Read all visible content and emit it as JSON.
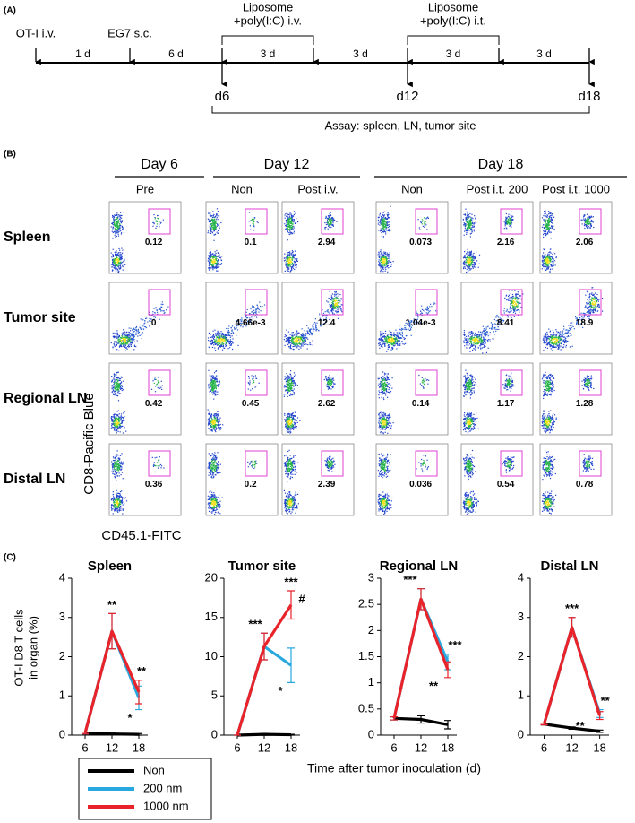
{
  "panel_a": {
    "label": "(A)",
    "events": [
      "OT-I i.v.",
      "EG7 s.c."
    ],
    "treatments": [
      [
        "Liposome",
        "+poly(I:C) i.v."
      ],
      [
        "Liposome",
        "+poly(I:C) i.t."
      ]
    ],
    "intervals": [
      "1 d",
      "6 d",
      "3 d",
      "3 d",
      "3 d",
      "3 d"
    ],
    "days": [
      "d6",
      "d12",
      "d18"
    ],
    "assay": "Assay: spleen, LN, tumor site"
  },
  "panel_b": {
    "label": "(B)",
    "groups": [
      "Day 6",
      "Day 12",
      "Day 18"
    ],
    "columns": [
      "Pre",
      "Non",
      "Post i.v.",
      "Non",
      "Post i.t. 200",
      "Post i.t. 1000"
    ],
    "rows": [
      "Spleen",
      "Tumor site",
      "Regional LN",
      "Distal LN"
    ],
    "gate_values": [
      [
        "0.12",
        "0.1",
        "2.94",
        "0.073",
        "2.16",
        "2.06"
      ],
      [
        "0",
        "4.66e-3",
        "12.4",
        "1.04e-3",
        "8.41",
        "18.9"
      ],
      [
        "0.42",
        "0.45",
        "2.62",
        "0.14",
        "1.17",
        "1.28"
      ],
      [
        "0.36",
        "0.2",
        "2.39",
        "0.036",
        "0.54",
        "0.78"
      ]
    ],
    "ylabel": "CD8-Pacific Blue",
    "xlabel": "CD45.1-FITC"
  },
  "panel_c": {
    "label": "(C)"
  },
  "chart_data": [
    {
      "type": "line",
      "title": "Spleen",
      "ylabel": [
        "OT-I D8 T cells",
        "in organ (%)"
      ],
      "xlabel": "Time after tumor inoculation (d)",
      "x": [
        6,
        12,
        18
      ],
      "xlim": [
        3,
        20
      ],
      "xticks": [
        6,
        12,
        18
      ],
      "ylim": [
        0,
        4
      ],
      "yticks": [
        0,
        1,
        2,
        3,
        4
      ],
      "series": [
        {
          "name": "Non",
          "color": "#000000",
          "values": [
            0.05,
            0.03,
            0.02
          ],
          "errors": [
            0.02,
            0.02,
            0.02
          ]
        },
        {
          "name": "200 nm",
          "color": "#29a8e0",
          "values": [
            0.05,
            2.65,
            0.95
          ],
          "errors": [
            0.02,
            0.45,
            0.3
          ]
        },
        {
          "name": "1000 nm",
          "color": "#e8232a",
          "values": [
            0.05,
            2.65,
            1.1
          ],
          "errors": [
            0.02,
            0.45,
            0.3
          ]
        }
      ],
      "annotations": [
        "**",
        "**",
        "*"
      ]
    },
    {
      "type": "line",
      "title": "Tumor site",
      "x": [
        6,
        12,
        18
      ],
      "xlim": [
        3,
        20
      ],
      "xticks": [
        6,
        12,
        18
      ],
      "ylim": [
        0,
        20
      ],
      "yticks": [
        0,
        5,
        10,
        15,
        20
      ],
      "series": [
        {
          "color": "#000000",
          "values": [
            0,
            0.1,
            0.05
          ],
          "errors": [
            0,
            0.1,
            0.05
          ]
        },
        {
          "color": "#29a8e0",
          "values": [
            0,
            11.3,
            8.9
          ],
          "errors": [
            0,
            1.7,
            2.2
          ]
        },
        {
          "color": "#e8232a",
          "values": [
            0,
            11.3,
            16.6
          ],
          "errors": [
            0,
            1.7,
            1.8
          ]
        }
      ],
      "annotations": [
        "***",
        "***",
        "#",
        "*"
      ]
    },
    {
      "type": "line",
      "title": "Regional LN",
      "x": [
        6,
        12,
        18
      ],
      "xlim": [
        3,
        20
      ],
      "xticks": [
        6,
        12,
        18
      ],
      "ylim": [
        0,
        3
      ],
      "yticks": [
        0,
        0.5,
        1,
        1.5,
        2,
        2.5,
        3
      ],
      "series": [
        {
          "color": "#000000",
          "values": [
            0.32,
            0.3,
            0.2
          ],
          "errors": [
            0.03,
            0.07,
            0.08
          ]
        },
        {
          "color": "#29a8e0",
          "values": [
            0.32,
            2.6,
            1.4
          ],
          "errors": [
            0.03,
            0.2,
            0.15
          ]
        },
        {
          "color": "#e8232a",
          "values": [
            0.32,
            2.6,
            1.25
          ],
          "errors": [
            0.03,
            0.2,
            0.15
          ]
        }
      ],
      "annotations": [
        "***",
        "***",
        "**"
      ]
    },
    {
      "type": "line",
      "title": "Distal LN",
      "x": [
        6,
        12,
        18
      ],
      "xlim": [
        3,
        20
      ],
      "xticks": [
        6,
        12,
        18
      ],
      "ylim": [
        0,
        4
      ],
      "yticks": [
        0,
        1,
        2,
        3,
        4
      ],
      "series": [
        {
          "color": "#000000",
          "values": [
            0.28,
            0.18,
            0.1
          ],
          "errors": [
            0.02,
            0.03,
            0.03
          ]
        },
        {
          "color": "#29a8e0",
          "values": [
            0.28,
            2.75,
            0.55
          ],
          "errors": [
            0.02,
            0.25,
            0.1
          ]
        },
        {
          "color": "#e8232a",
          "values": [
            0.28,
            2.75,
            0.5
          ],
          "errors": [
            0.02,
            0.25,
            0.1
          ]
        }
      ],
      "annotations": [
        "***",
        "**",
        "**"
      ]
    }
  ]
}
